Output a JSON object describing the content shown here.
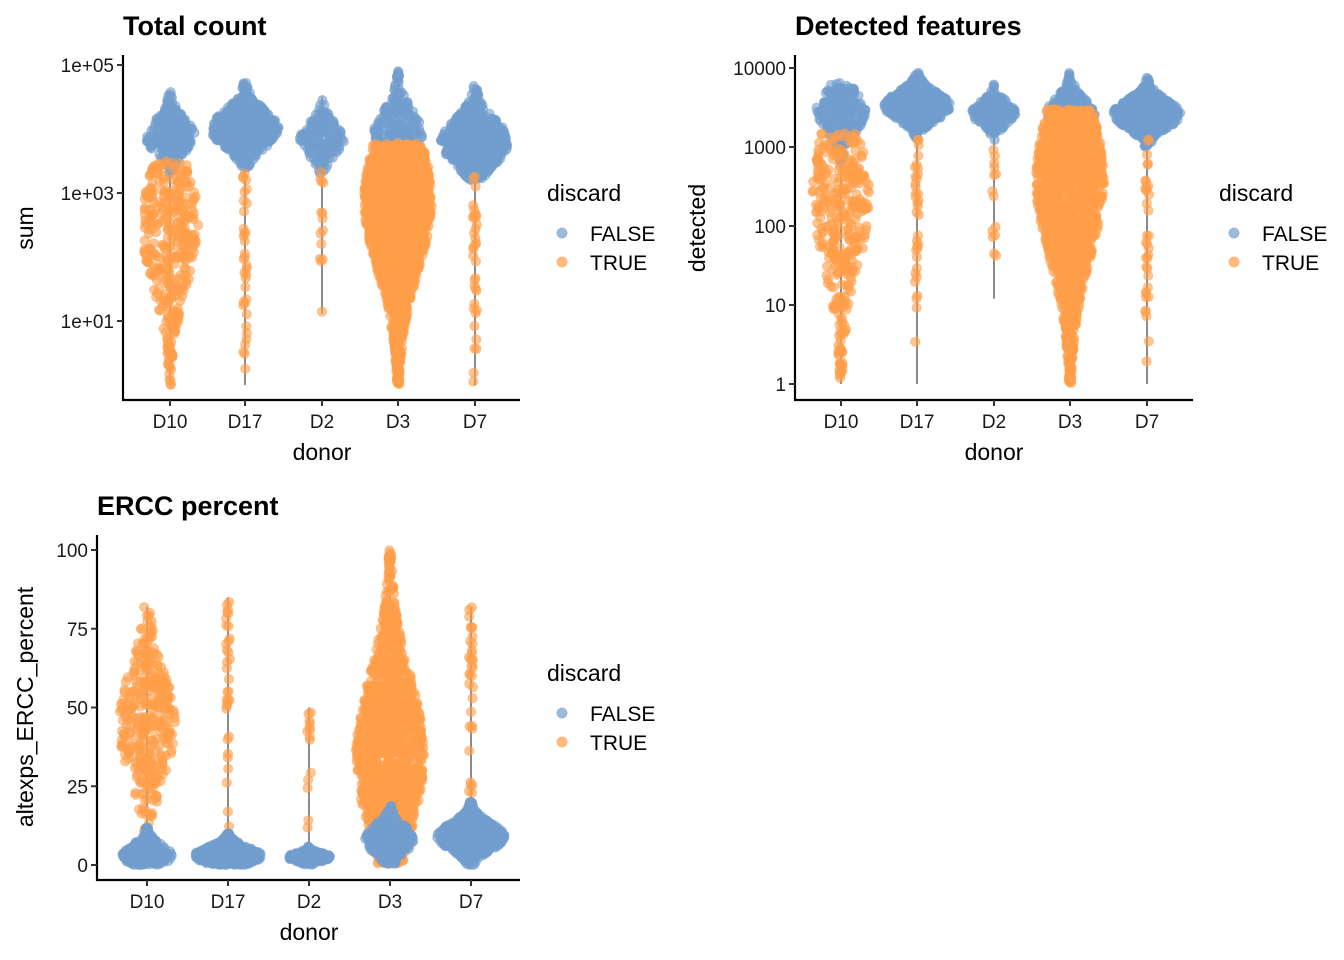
{
  "colors": {
    "FALSE": "#729ECE",
    "TRUE": "#FF9E4A",
    "violin": "#8c8c8c"
  },
  "chart_data": [
    {
      "type": "violin-beeswarm",
      "title": "Total count",
      "xlabel": "donor",
      "ylabel": "sum",
      "yscale": "log10",
      "ylim": [
        1,
        100000
      ],
      "yticks": [
        {
          "v": 100000,
          "label": "1e+05"
        },
        {
          "v": 1000,
          "label": "1e+03"
        },
        {
          "v": 10,
          "label": "1e+01"
        }
      ],
      "categories": [
        "D10",
        "D17",
        "D2",
        "D3",
        "D7"
      ],
      "legend": {
        "title": "discard",
        "items": [
          "FALSE",
          "TRUE"
        ],
        "placement": "right"
      },
      "groups": [
        {
          "donor": "D10",
          "discard": "FALSE",
          "center": 7900,
          "range": [
            2000,
            40000
          ],
          "n": 250
        },
        {
          "donor": "D10",
          "discard": "TRUE",
          "center": 320,
          "range": [
            1,
            3200
          ],
          "n": 350
        },
        {
          "donor": "D17",
          "discard": "FALSE",
          "center": 10000,
          "range": [
            2500,
            56000
          ],
          "n": 600
        },
        {
          "donor": "D17",
          "discard": "TRUE",
          "center": null,
          "range": [
            1,
            2500
          ],
          "n": 35
        },
        {
          "donor": "D2",
          "discard": "FALSE",
          "center": 7000,
          "range": [
            2000,
            32000
          ],
          "n": 180
        },
        {
          "donor": "D2",
          "discard": "TRUE",
          "center": null,
          "range": [
            13,
            2500
          ],
          "n": 14
        },
        {
          "donor": "D3",
          "discard": "FALSE",
          "center": 8000,
          "range": [
            3000,
            80000
          ],
          "n": 250
        },
        {
          "donor": "D3",
          "discard": "TRUE",
          "center": 800,
          "range": [
            1,
            6000
          ],
          "n": 1400
        },
        {
          "donor": "D7",
          "discard": "FALSE",
          "center": 6300,
          "range": [
            1600,
            50000
          ],
          "n": 600
        },
        {
          "donor": "D7",
          "discard": "TRUE",
          "center": null,
          "range": [
            1,
            2000
          ],
          "n": 35
        }
      ]
    },
    {
      "type": "violin-beeswarm",
      "title": "Detected features",
      "xlabel": "donor",
      "ylabel": "detected",
      "yscale": "log10",
      "ylim": [
        1,
        10000
      ],
      "yticks": [
        {
          "v": 10000,
          "label": "10000"
        },
        {
          "v": 1000,
          "label": "1000"
        },
        {
          "v": 100,
          "label": "100"
        },
        {
          "v": 10,
          "label": "10"
        },
        {
          "v": 1,
          "label": "1"
        }
      ],
      "categories": [
        "D10",
        "D17",
        "D2",
        "D3",
        "D7"
      ],
      "legend": {
        "title": "discard",
        "items": [
          "FALSE",
          "TRUE"
        ],
        "placement": "right"
      },
      "groups": [
        {
          "donor": "D10",
          "discard": "FALSE",
          "center": 2800,
          "range": [
            600,
            6500
          ],
          "n": 250
        },
        {
          "donor": "D10",
          "discard": "TRUE",
          "center": 250,
          "range": [
            1,
            1500
          ],
          "n": 350
        },
        {
          "donor": "D17",
          "discard": "FALSE",
          "center": 3300,
          "range": [
            1200,
            9000
          ],
          "n": 600
        },
        {
          "donor": "D17",
          "discard": "TRUE",
          "center": null,
          "range": [
            1,
            1400
          ],
          "n": 35
        },
        {
          "donor": "D2",
          "discard": "FALSE",
          "center": 2700,
          "range": [
            1200,
            6300
          ],
          "n": 180
        },
        {
          "donor": "D2",
          "discard": "TRUE",
          "center": null,
          "range": [
            12,
            1000
          ],
          "n": 14
        },
        {
          "donor": "D3",
          "discard": "FALSE",
          "center": 2500,
          "range": [
            1000,
            9000
          ],
          "n": 250
        },
        {
          "donor": "D3",
          "discard": "TRUE",
          "center": 400,
          "range": [
            1,
            3000
          ],
          "n": 1400
        },
        {
          "donor": "D7",
          "discard": "FALSE",
          "center": 2600,
          "range": [
            1000,
            7500
          ],
          "n": 600
        },
        {
          "donor": "D7",
          "discard": "TRUE",
          "center": null,
          "range": [
            1,
            1300
          ],
          "n": 35
        }
      ]
    },
    {
      "type": "violin-beeswarm",
      "title": "ERCC percent",
      "xlabel": "donor",
      "ylabel": "altexps_ERCC_percent",
      "yscale": "linear",
      "ylim": [
        0,
        100
      ],
      "yticks": [
        {
          "v": 100,
          "label": "100"
        },
        {
          "v": 75,
          "label": "75"
        },
        {
          "v": 50,
          "label": "50"
        },
        {
          "v": 25,
          "label": "25"
        },
        {
          "v": 0,
          "label": "0"
        }
      ],
      "categories": [
        "D10",
        "D17",
        "D2",
        "D3",
        "D7"
      ],
      "legend": {
        "title": "discard",
        "items": [
          "FALSE",
          "TRUE"
        ],
        "placement": "right"
      },
      "groups": [
        {
          "donor": "D10",
          "discard": "TRUE",
          "center": 45,
          "range": [
            0,
            82
          ],
          "n": 350
        },
        {
          "donor": "D10",
          "discard": "FALSE",
          "center": 3,
          "range": [
            0,
            12
          ],
          "n": 250
        },
        {
          "donor": "D17",
          "discard": "TRUE",
          "center": null,
          "range": [
            0,
            85
          ],
          "n": 35
        },
        {
          "donor": "D17",
          "discard": "FALSE",
          "center": 3,
          "range": [
            0,
            10
          ],
          "n": 600
        },
        {
          "donor": "D2",
          "discard": "TRUE",
          "center": null,
          "range": [
            0,
            50
          ],
          "n": 14
        },
        {
          "donor": "D2",
          "discard": "FALSE",
          "center": 2.5,
          "range": [
            0,
            6
          ],
          "n": 180
        },
        {
          "donor": "D3",
          "discard": "TRUE",
          "center": 35,
          "range": [
            0,
            100
          ],
          "n": 1400
        },
        {
          "donor": "D3",
          "discard": "FALSE",
          "center": 8,
          "range": [
            0,
            20
          ],
          "n": 250
        },
        {
          "donor": "D7",
          "discard": "TRUE",
          "center": null,
          "range": [
            0,
            82
          ],
          "n": 35
        },
        {
          "donor": "D7",
          "discard": "FALSE",
          "center": 9,
          "range": [
            0,
            20
          ],
          "n": 600
        }
      ]
    }
  ]
}
